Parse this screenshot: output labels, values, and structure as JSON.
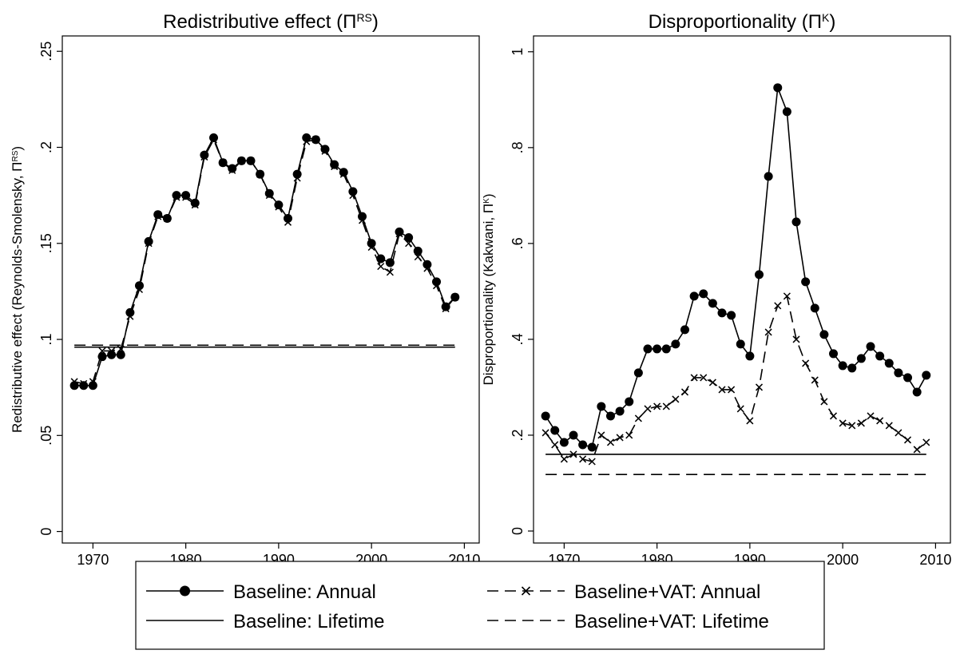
{
  "chart_data": [
    {
      "type": "line",
      "title": {
        "main": "Redistributive effect (Π",
        "sup": "RS",
        "end": ")"
      },
      "y_label": {
        "main": "Redistributive effect (Reynolds-Smolensky, Π",
        "sup": "RS",
        "end": ")"
      },
      "x": [
        1968,
        1969,
        1970,
        1971,
        1972,
        1973,
        1974,
        1975,
        1976,
        1977,
        1978,
        1979,
        1980,
        1981,
        1982,
        1983,
        1984,
        1985,
        1986,
        1987,
        1988,
        1989,
        1990,
        1991,
        1992,
        1993,
        1994,
        1995,
        1996,
        1997,
        1998,
        1999,
        2000,
        2001,
        2002,
        2003,
        2004,
        2005,
        2006,
        2007,
        2008,
        2009
      ],
      "xlim": [
        1966.7,
        2011.6
      ],
      "xticks": [
        1970,
        1980,
        1990,
        2000,
        2010
      ],
      "ylim": [
        -0.006,
        0.258
      ],
      "yticks": [
        0,
        {
          "value": 0.05,
          "label": ".05"
        },
        {
          "value": 0.1,
          "label": ".1"
        },
        {
          "value": 0.15,
          "label": ".15"
        },
        {
          "value": 0.2,
          "label": ".2"
        },
        {
          "value": 0.25,
          "label": ".25"
        }
      ],
      "series": [
        {
          "name": "Baseline: Annual",
          "color": "#000000",
          "line_style": "solid",
          "marker": "circle",
          "values": [
            0.076,
            0.076,
            0.076,
            0.091,
            0.092,
            0.092,
            0.114,
            0.128,
            0.151,
            0.165,
            0.163,
            0.175,
            0.175,
            0.171,
            0.196,
            0.205,
            0.192,
            0.189,
            0.193,
            0.193,
            0.186,
            0.176,
            0.17,
            0.163,
            0.186,
            0.205,
            0.204,
            0.199,
            0.191,
            0.187,
            0.177,
            0.164,
            0.15,
            0.142,
            0.14,
            0.156,
            0.153,
            0.146,
            0.139,
            0.13,
            0.117,
            0.122
          ]
        },
        {
          "name": "Baseline+VAT: Annual",
          "color": "#000000",
          "line_style": "dash",
          "marker": "x",
          "values": [
            0.078,
            0.077,
            0.078,
            0.094,
            0.094,
            0.095,
            0.112,
            0.126,
            0.15,
            0.164,
            0.163,
            0.174,
            0.174,
            0.17,
            0.195,
            0.204,
            0.192,
            0.188,
            0.193,
            0.193,
            0.186,
            0.175,
            0.169,
            0.161,
            0.184,
            0.203,
            0.204,
            0.198,
            0.19,
            0.186,
            0.175,
            0.162,
            0.148,
            0.138,
            0.135,
            0.155,
            0.15,
            0.143,
            0.137,
            0.128,
            0.116,
            0.122
          ]
        },
        {
          "name": "Baseline: Lifetime",
          "color": "#000000",
          "line_style": "solid",
          "marker": "none",
          "values": [
            0.096,
            0.096,
            0.096,
            0.096,
            0.096,
            0.096,
            0.096,
            0.096,
            0.096,
            0.096,
            0.096,
            0.096,
            0.096,
            0.096,
            0.096,
            0.096,
            0.096,
            0.096,
            0.096,
            0.096,
            0.096,
            0.096,
            0.096,
            0.096,
            0.096,
            0.096,
            0.096,
            0.096,
            0.096,
            0.096,
            0.096,
            0.096,
            0.096,
            0.096,
            0.096,
            0.096,
            0.096,
            0.096,
            0.096,
            0.096,
            0.096,
            0.096
          ]
        },
        {
          "name": "Baseline+VAT: Lifetime",
          "color": "#000000",
          "line_style": "dash",
          "marker": "none",
          "values": [
            0.097,
            0.097,
            0.097,
            0.097,
            0.097,
            0.097,
            0.097,
            0.097,
            0.097,
            0.097,
            0.097,
            0.097,
            0.097,
            0.097,
            0.097,
            0.097,
            0.097,
            0.097,
            0.097,
            0.097,
            0.097,
            0.097,
            0.097,
            0.097,
            0.097,
            0.097,
            0.097,
            0.097,
            0.097,
            0.097,
            0.097,
            0.097,
            0.097,
            0.097,
            0.097,
            0.097,
            0.097,
            0.097,
            0.097,
            0.097,
            0.097,
            0.097
          ]
        }
      ]
    },
    {
      "type": "line",
      "title": {
        "main": "Disproportionality (Π",
        "sup": "K",
        "end": ")"
      },
      "y_label": {
        "main": "Disproportionality (Kakwani, Π",
        "sup": "K",
        "end": ")"
      },
      "x": [
        1968,
        1969,
        1970,
        1971,
        1972,
        1973,
        1974,
        1975,
        1976,
        1977,
        1978,
        1979,
        1980,
        1981,
        1982,
        1983,
        1984,
        1985,
        1986,
        1987,
        1988,
        1989,
        1990,
        1991,
        1992,
        1993,
        1994,
        1995,
        1996,
        1997,
        1998,
        1999,
        2000,
        2001,
        2002,
        2003,
        2004,
        2005,
        2006,
        2007,
        2008,
        2009
      ],
      "xlim": [
        1966.7,
        2011.6
      ],
      "xticks": [
        1970,
        1980,
        1990,
        2000,
        2010
      ],
      "ylim": [
        -0.025,
        1.033
      ],
      "yticks": [
        0,
        {
          "value": 0.2,
          "label": ".2"
        },
        {
          "value": 0.4,
          "label": ".4"
        },
        {
          "value": 0.6,
          "label": ".6"
        },
        {
          "value": 0.8,
          "label": ".8"
        },
        1
      ],
      "series": [
        {
          "name": "Baseline: Annual",
          "color": "#000000",
          "line_style": "solid",
          "marker": "circle",
          "values": [
            0.24,
            0.21,
            0.185,
            0.2,
            0.18,
            0.175,
            0.26,
            0.24,
            0.25,
            0.27,
            0.33,
            0.38,
            0.38,
            0.38,
            0.39,
            0.42,
            0.49,
            0.495,
            0.475,
            0.455,
            0.45,
            0.39,
            0.365,
            0.535,
            0.74,
            0.925,
            0.875,
            0.645,
            0.52,
            0.465,
            0.41,
            0.37,
            0.345,
            0.34,
            0.36,
            0.385,
            0.365,
            0.35,
            0.33,
            0.32,
            0.29,
            0.325
          ]
        },
        {
          "name": "Baseline+VAT: Annual",
          "color": "#000000",
          "line_style": "dash",
          "marker": "x",
          "values": [
            0.205,
            0.18,
            0.15,
            0.16,
            0.15,
            0.145,
            0.2,
            0.185,
            0.195,
            0.2,
            0.235,
            0.255,
            0.26,
            0.26,
            0.275,
            0.29,
            0.32,
            0.32,
            0.31,
            0.295,
            0.295,
            0.255,
            0.23,
            0.3,
            0.415,
            0.47,
            0.49,
            0.4,
            0.35,
            0.315,
            0.27,
            0.24,
            0.225,
            0.22,
            0.225,
            0.24,
            0.23,
            0.22,
            0.205,
            0.19,
            0.17,
            0.185
          ]
        },
        {
          "name": "Baseline: Lifetime",
          "color": "#000000",
          "line_style": "solid",
          "marker": "none",
          "values": [
            0.16,
            0.16,
            0.16,
            0.16,
            0.16,
            0.16,
            0.16,
            0.16,
            0.16,
            0.16,
            0.16,
            0.16,
            0.16,
            0.16,
            0.16,
            0.16,
            0.16,
            0.16,
            0.16,
            0.16,
            0.16,
            0.16,
            0.16,
            0.16,
            0.16,
            0.16,
            0.16,
            0.16,
            0.16,
            0.16,
            0.16,
            0.16,
            0.16,
            0.16,
            0.16,
            0.16,
            0.16,
            0.16,
            0.16,
            0.16,
            0.16,
            0.16
          ]
        },
        {
          "name": "Baseline+VAT: Lifetime",
          "color": "#000000",
          "line_style": "dash",
          "marker": "none",
          "values": [
            0.118,
            0.118,
            0.118,
            0.118,
            0.118,
            0.118,
            0.118,
            0.118,
            0.118,
            0.118,
            0.118,
            0.118,
            0.118,
            0.118,
            0.118,
            0.118,
            0.118,
            0.118,
            0.118,
            0.118,
            0.118,
            0.118,
            0.118,
            0.118,
            0.118,
            0.118,
            0.118,
            0.118,
            0.118,
            0.118,
            0.118,
            0.118,
            0.118,
            0.118,
            0.118,
            0.118,
            0.118,
            0.118,
            0.118,
            0.118,
            0.118,
            0.118
          ]
        }
      ]
    }
  ]
}
